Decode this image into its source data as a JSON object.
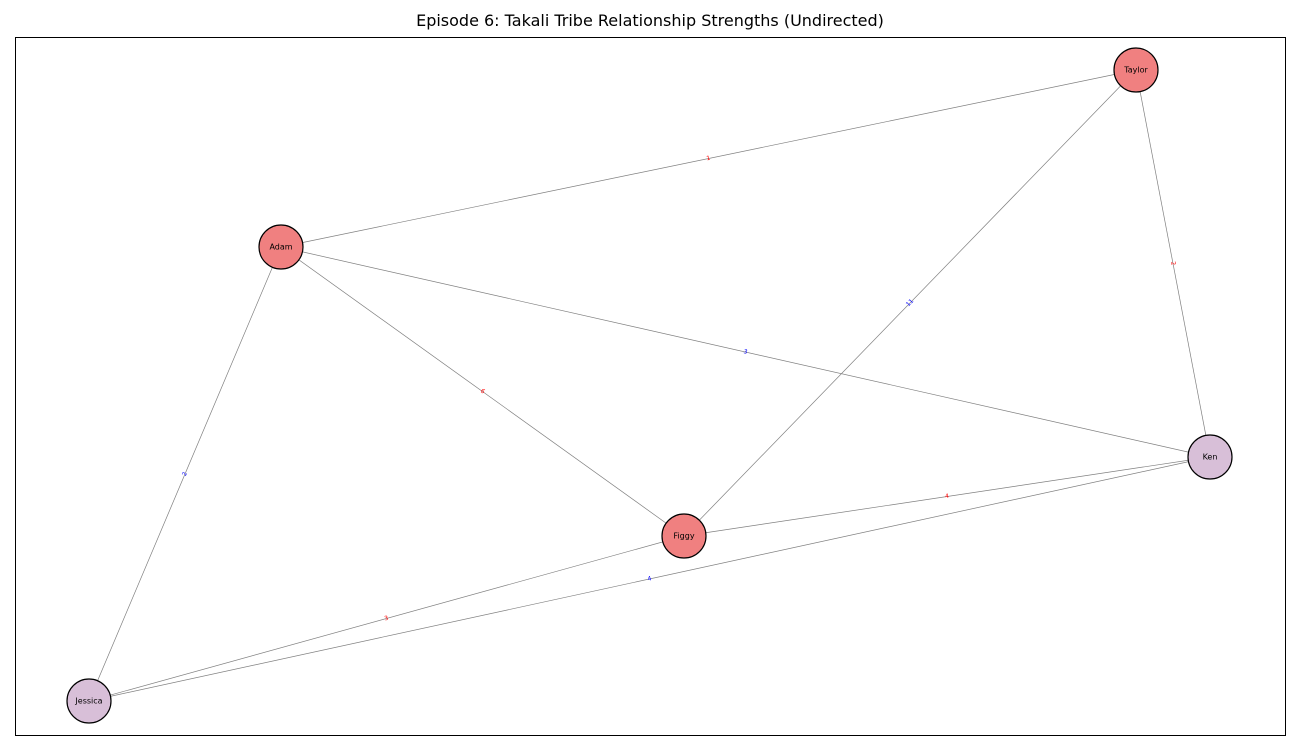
{
  "title": "Episode 6: Takali Tribe Relationship Strengths (Undirected)",
  "colors": {
    "red_node": "#f08080",
    "purple_node": "#d8bfd8",
    "edge": "#808080",
    "label_red": "#ff0000",
    "label_blue": "#0000ff"
  },
  "nodes": [
    {
      "id": "taylor",
      "label": "Taylor",
      "color": "red"
    },
    {
      "id": "adam",
      "label": "Adam",
      "color": "red"
    },
    {
      "id": "ken",
      "label": "Ken",
      "color": "purple"
    },
    {
      "id": "figgy",
      "label": "Figgy",
      "color": "red"
    },
    {
      "id": "jessica",
      "label": "Jessica",
      "color": "purple"
    }
  ],
  "edges": [
    {
      "source": "adam",
      "target": "taylor",
      "label": "1",
      "color": "red"
    },
    {
      "source": "figgy",
      "target": "taylor",
      "label": "11",
      "color": "blue"
    },
    {
      "source": "taylor",
      "target": "ken",
      "label": "2",
      "color": "red"
    },
    {
      "source": "adam",
      "target": "ken",
      "label": "3",
      "color": "blue"
    },
    {
      "source": "adam",
      "target": "figgy",
      "label": "6",
      "color": "red"
    },
    {
      "source": "adam",
      "target": "jessica",
      "label": "2",
      "color": "blue"
    },
    {
      "source": "figgy",
      "target": "ken",
      "label": "4",
      "color": "red"
    },
    {
      "source": "jessica",
      "target": "ken",
      "label": "4",
      "color": "blue"
    },
    {
      "source": "jessica",
      "target": "figgy",
      "label": "3",
      "color": "red"
    }
  ]
}
